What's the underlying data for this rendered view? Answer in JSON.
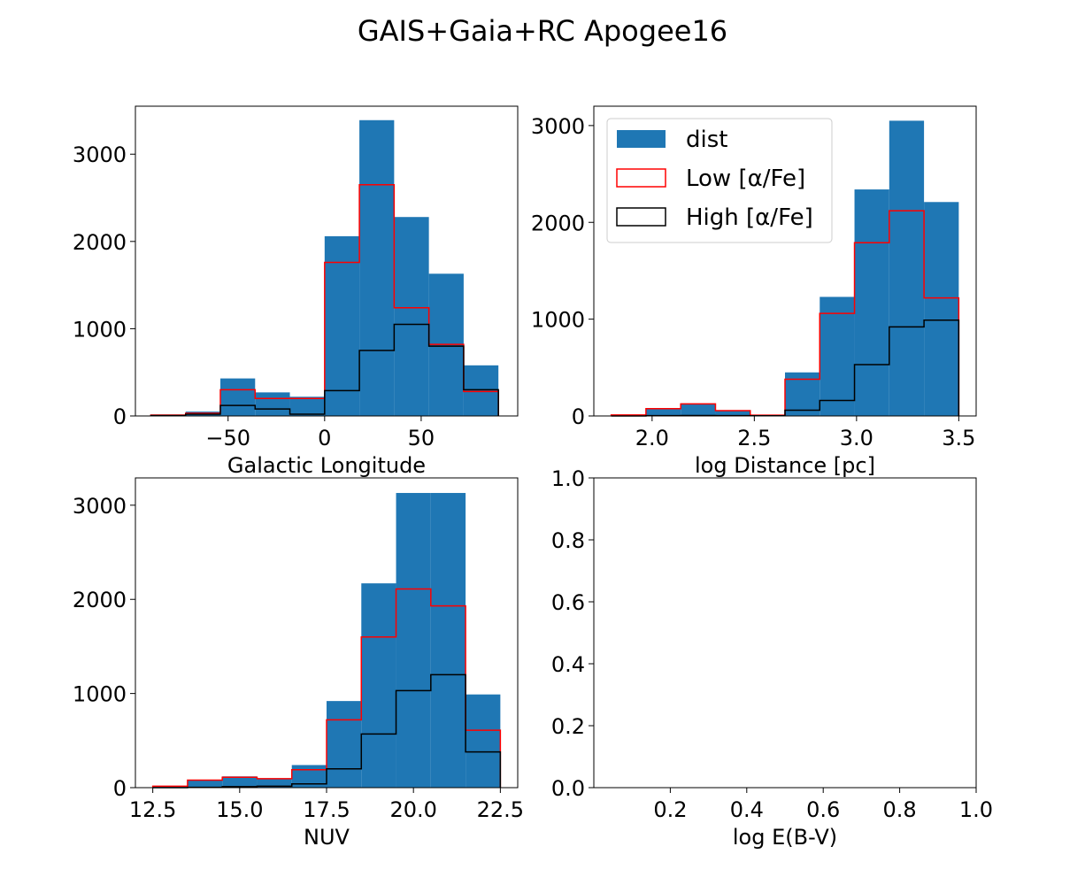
{
  "figure": {
    "title": "GAIS+Gaia+RC Apogee16"
  },
  "colors": {
    "dist": "#1f77b4",
    "low": "#ff0000",
    "high": "#000000"
  },
  "legend": {
    "entries": [
      "dist",
      "Low [α/Fe]",
      "High [α/Fe]"
    ],
    "placement": "upper-left"
  },
  "chart_data": [
    {
      "type": "bar",
      "panel": "top-left",
      "xlabel": "Galactic Longitude",
      "ylabel": "",
      "xlim": [
        -98,
        100
      ],
      "ylim": [
        0,
        3550
      ],
      "xticks": [
        -50,
        0,
        50
      ],
      "xtick_labels": [
        "−50",
        "0",
        "50"
      ],
      "yticks": [
        0,
        1000,
        2000,
        3000
      ],
      "ytick_labels": [
        "0",
        "1000",
        "2000",
        "3000"
      ],
      "bin_edges": [
        -90,
        -72,
        -54,
        -36,
        -18,
        0,
        18,
        36,
        54,
        72,
        90
      ],
      "series": [
        {
          "name": "dist",
          "style": "filled",
          "values": [
            10,
            50,
            430,
            270,
            220,
            2060,
            3390,
            2280,
            1630,
            580
          ]
        },
        {
          "name": "Low [α/Fe]",
          "style": "step",
          "values": [
            10,
            30,
            300,
            200,
            200,
            1760,
            2650,
            1240,
            820,
            280
          ]
        },
        {
          "name": "High [α/Fe]",
          "style": "step",
          "values": [
            5,
            20,
            120,
            80,
            20,
            290,
            750,
            1050,
            800,
            300
          ]
        }
      ]
    },
    {
      "type": "bar",
      "panel": "top-right",
      "xlabel": "log Distance [pc]",
      "ylabel": "",
      "xlim": [
        1.715,
        3.585
      ],
      "ylim": [
        0,
        3200
      ],
      "xticks": [
        2.0,
        2.5,
        3.0,
        3.5
      ],
      "xtick_labels": [
        "2.0",
        "2.5",
        "3.0",
        "3.5"
      ],
      "yticks": [
        0,
        1000,
        2000,
        3000
      ],
      "ytick_labels": [
        "0",
        "1000",
        "2000",
        "3000"
      ],
      "bin_edges": [
        1.8,
        1.97,
        2.14,
        2.31,
        2.48,
        2.65,
        2.82,
        2.99,
        3.16,
        3.33,
        3.5
      ],
      "series": [
        {
          "name": "dist",
          "style": "filled",
          "values": [
            10,
            80,
            130,
            60,
            10,
            450,
            1230,
            2340,
            3050,
            2210
          ]
        },
        {
          "name": "Low [α/Fe]",
          "style": "step",
          "values": [
            10,
            75,
            125,
            55,
            8,
            380,
            1060,
            1790,
            2120,
            1220
          ]
        },
        {
          "name": "High [α/Fe]",
          "style": "step",
          "values": [
            0,
            3,
            5,
            3,
            2,
            60,
            160,
            530,
            920,
            990
          ]
        }
      ]
    },
    {
      "type": "bar",
      "panel": "bottom-left",
      "xlabel": "NUV",
      "ylabel": "",
      "xlim": [
        12.0,
        23.0
      ],
      "ylim": [
        0,
        3290
      ],
      "xticks": [
        12.5,
        15.0,
        17.5,
        20.0,
        22.5
      ],
      "xtick_labels": [
        "12.5",
        "15.0",
        "17.5",
        "20.0",
        "22.5"
      ],
      "yticks": [
        0,
        1000,
        2000,
        3000
      ],
      "ytick_labels": [
        "0",
        "1000",
        "2000",
        "3000"
      ],
      "bin_edges": [
        12.5,
        13.5,
        14.5,
        15.5,
        16.5,
        17.5,
        18.5,
        19.5,
        20.5,
        21.5,
        22.5
      ],
      "series": [
        {
          "name": "dist",
          "style": "filled",
          "values": [
            20,
            80,
            120,
            100,
            240,
            920,
            2170,
            3130,
            3130,
            990
          ]
        },
        {
          "name": "Low [α/Fe]",
          "style": "step",
          "values": [
            15,
            80,
            110,
            95,
            190,
            720,
            1600,
            2110,
            1930,
            610
          ]
        },
        {
          "name": "High [α/Fe]",
          "style": "step",
          "values": [
            0,
            3,
            10,
            15,
            40,
            200,
            570,
            1030,
            1200,
            380
          ]
        }
      ]
    },
    {
      "type": "bar",
      "panel": "bottom-right",
      "xlabel": "log E(B-V)",
      "ylabel": "",
      "xlim": [
        0,
        1
      ],
      "ylim": [
        0,
        1
      ],
      "xticks": [
        0.2,
        0.4,
        0.6,
        0.8,
        1.0
      ],
      "xtick_labels": [
        "0.2",
        "0.4",
        "0.6",
        "0.8",
        "1.0"
      ],
      "yticks": [
        0.0,
        0.2,
        0.4,
        0.6,
        0.8,
        1.0
      ],
      "ytick_labels": [
        "0.0",
        "0.2",
        "0.4",
        "0.6",
        "0.8",
        "1.0"
      ],
      "bin_edges": [],
      "series": []
    }
  ]
}
